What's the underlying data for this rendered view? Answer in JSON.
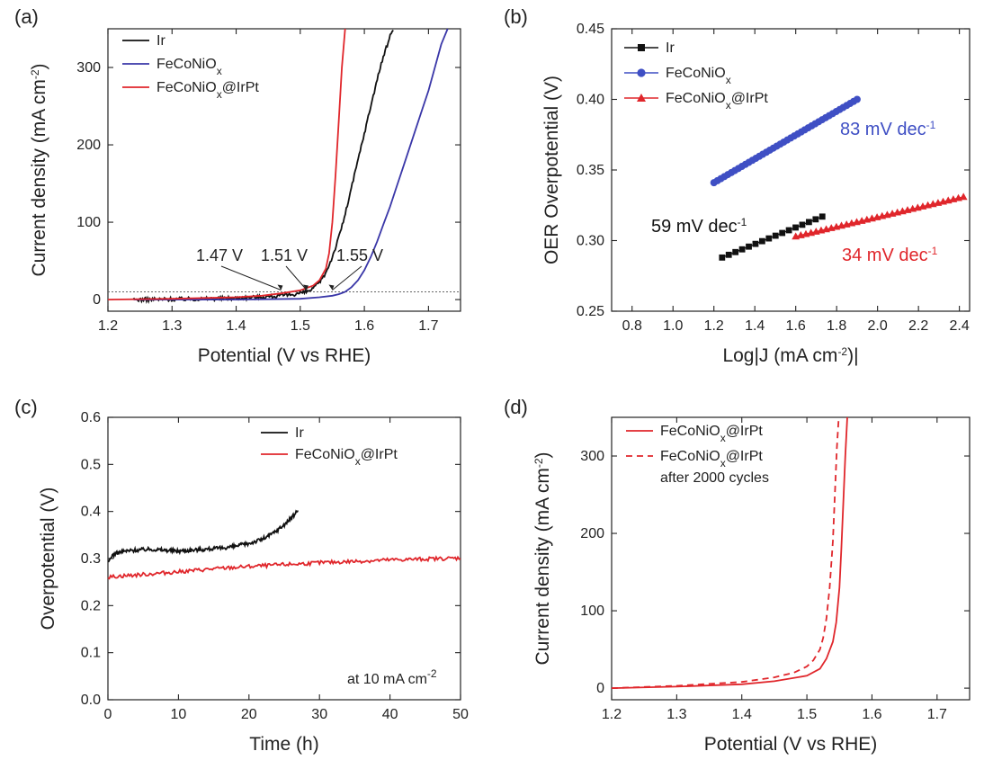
{
  "chart_data": [
    {
      "panel": "(a)",
      "type": "line",
      "xlabel": "Potential (V vs RHE)",
      "ylabel": "Current density (mA cm-2)",
      "ylabel_parts": [
        "Current density (mA cm",
        "-2",
        ")"
      ],
      "xlim": [
        1.2,
        1.75
      ],
      "ylim": [
        -15,
        350
      ],
      "xticks": [
        1.2,
        1.3,
        1.4,
        1.5,
        1.6,
        1.7
      ],
      "yticks": [
        0,
        100,
        200,
        300
      ],
      "legend_entries": [
        {
          "parts": [
            "Ir"
          ],
          "color": "#111111"
        },
        {
          "parts": [
            "FeCoNiO",
            "x"
          ],
          "color": "#3a37a8"
        },
        {
          "parts": [
            "FeCoNiO",
            "x",
            "@IrPt"
          ],
          "color": "#e0262b"
        }
      ],
      "reference_line": {
        "y": 10,
        "style": "dotted"
      },
      "annotations": [
        {
          "text": "1.47 V",
          "x": 1.47,
          "y": 10
        },
        {
          "text": "1.51 V",
          "x": 1.51,
          "y": 10
        },
        {
          "text": "1.55 V",
          "x": 1.55,
          "y": 10
        }
      ],
      "series": [
        {
          "name": "Ir",
          "color": "#111111",
          "noisy": true,
          "x": [
            1.24,
            1.3,
            1.35,
            1.4,
            1.44,
            1.47,
            1.49,
            1.51,
            1.52,
            1.53,
            1.54,
            1.55,
            1.56,
            1.57,
            1.58,
            1.59,
            1.6,
            1.61,
            1.62,
            1.63,
            1.64,
            1.645
          ],
          "y": [
            0,
            0.5,
            1,
            2,
            3.5,
            5,
            7,
            10,
            14,
            22,
            35,
            55,
            80,
            110,
            145,
            180,
            215,
            250,
            285,
            315,
            340,
            350
          ]
        },
        {
          "name": "FeCoNiOx",
          "color": "#3a37a8",
          "x": [
            1.24,
            1.3,
            1.4,
            1.5,
            1.53,
            1.55,
            1.56,
            1.57,
            1.58,
            1.59,
            1.6,
            1.61,
            1.62,
            1.63,
            1.64,
            1.65,
            1.66,
            1.67,
            1.68,
            1.69,
            1.7,
            1.71,
            1.72,
            1.73
          ],
          "y": [
            0,
            0,
            0,
            1,
            3,
            5,
            7,
            10,
            16,
            25,
            38,
            55,
            75,
            98,
            120,
            145,
            170,
            195,
            220,
            245,
            270,
            300,
            330,
            350
          ]
        },
        {
          "name": "FeCoNiOx@IrPt",
          "color": "#e0262b",
          "x": [
            1.2,
            1.3,
            1.4,
            1.44,
            1.47,
            1.5,
            1.52,
            1.53,
            1.54,
            1.545,
            1.55,
            1.555,
            1.56,
            1.565,
            1.57
          ],
          "y": [
            0,
            1,
            3,
            5,
            8,
            12,
            18,
            25,
            40,
            60,
            100,
            160,
            230,
            300,
            350
          ]
        }
      ]
    },
    {
      "panel": "(b)",
      "type": "scatter",
      "xlabel_parts": [
        "Log|J (mA cm",
        "-2",
        ")|"
      ],
      "ylabel": "OER Overpotential (V)",
      "xlim": [
        0.7,
        2.45
      ],
      "ylim": [
        0.25,
        0.45
      ],
      "xticks": [
        0.8,
        1.0,
        1.2,
        1.4,
        1.6,
        1.8,
        2.0,
        2.2,
        2.4
      ],
      "yticks": [
        0.25,
        0.3,
        0.35,
        0.4,
        0.45
      ],
      "legend_entries": [
        {
          "parts": [
            "Ir"
          ],
          "color": "#111111",
          "marker": "square"
        },
        {
          "parts": [
            "FeCoNiO",
            "x"
          ],
          "color": "#3f4fc4",
          "marker": "circle"
        },
        {
          "parts": [
            "FeCoNiO",
            "x",
            "@IrPt"
          ],
          "color": "#e0262b",
          "marker": "triangle"
        }
      ],
      "annotations": [
        {
          "parts": [
            "83 mV dec",
            "-1"
          ],
          "color": "#3f4fc4"
        },
        {
          "parts": [
            "59 mV dec",
            "-1"
          ],
          "color": "#111111"
        },
        {
          "parts": [
            "34 mV dec",
            "-1"
          ],
          "color": "#e0262b"
        }
      ],
      "series": [
        {
          "name": "Ir",
          "color": "#111111",
          "marker": "square",
          "x_start": 1.24,
          "x_end": 1.73,
          "y_start": 0.288,
          "y_end": 0.317,
          "n": 16
        },
        {
          "name": "FeCoNiOx",
          "color": "#3f4fc4",
          "marker": "circle",
          "x_start": 1.2,
          "x_end": 1.9,
          "y_start": 0.341,
          "y_end": 0.4,
          "n": 42
        },
        {
          "name": "FeCoNiOx@IrPt",
          "color": "#e0262b",
          "marker": "triangle",
          "x_start": 1.6,
          "x_end": 2.42,
          "y_start": 0.303,
          "y_end": 0.331,
          "n": 34
        }
      ]
    },
    {
      "panel": "(c)",
      "type": "line",
      "xlabel": "Time (h)",
      "ylabel": "Overpotential (V)",
      "xlim": [
        0,
        50
      ],
      "ylim": [
        0,
        0.6
      ],
      "xticks": [
        0,
        10,
        20,
        30,
        40,
        50
      ],
      "yticks": [
        0.0,
        0.1,
        0.2,
        0.3,
        0.4,
        0.5,
        0.6
      ],
      "legend_entries": [
        {
          "parts": [
            "Ir"
          ],
          "color": "#111111"
        },
        {
          "parts": [
            "FeCoNiO",
            "x",
            "@IrPt"
          ],
          "color": "#e0262b"
        }
      ],
      "annotations": [
        {
          "parts": [
            "at 10 mA cm",
            "-2"
          ]
        }
      ],
      "series": [
        {
          "name": "Ir",
          "color": "#111111",
          "noisy": true,
          "x": [
            0,
            0.5,
            1,
            2,
            4,
            6,
            8,
            10,
            12,
            14,
            16,
            18,
            20,
            22,
            23,
            24,
            25,
            26,
            27
          ],
          "y": [
            0.29,
            0.305,
            0.31,
            0.315,
            0.318,
            0.32,
            0.318,
            0.316,
            0.318,
            0.32,
            0.322,
            0.326,
            0.332,
            0.342,
            0.35,
            0.36,
            0.372,
            0.386,
            0.403
          ]
        },
        {
          "name": "FeCoNiOx@IrPt",
          "color": "#e0262b",
          "noisy": true,
          "x": [
            0,
            1,
            5,
            10,
            15,
            20,
            25,
            30,
            35,
            40,
            45,
            50
          ],
          "y": [
            0.26,
            0.262,
            0.266,
            0.272,
            0.278,
            0.283,
            0.287,
            0.291,
            0.294,
            0.297,
            0.299,
            0.301
          ]
        }
      ]
    },
    {
      "panel": "(d)",
      "type": "line",
      "xlabel": "Potential (V vs RHE)",
      "ylabel": "Current density (mA cm-2)",
      "ylabel_parts": [
        "Current density (mA cm",
        "-2",
        ")"
      ],
      "xlim": [
        1.2,
        1.75
      ],
      "ylim": [
        -15,
        350
      ],
      "xticks": [
        1.2,
        1.3,
        1.4,
        1.5,
        1.6,
        1.7
      ],
      "yticks": [
        0,
        100,
        200,
        300
      ],
      "legend_entries": [
        {
          "parts": [
            "FeCoNiO",
            "x",
            "@IrPt"
          ],
          "color": "#e0262b",
          "dash": false
        },
        {
          "parts": [
            "FeCoNiO",
            "x",
            "@IrPt"
          ],
          "color": "#e0262b",
          "dash": true,
          "line2": "after 2000 cycles"
        }
      ],
      "series": [
        {
          "name": "FeCoNiOx@IrPt",
          "color": "#e0262b",
          "dash": false,
          "x": [
            1.2,
            1.3,
            1.4,
            1.45,
            1.5,
            1.52,
            1.53,
            1.54,
            1.545,
            1.55,
            1.553,
            1.556,
            1.559,
            1.562
          ],
          "y": [
            0,
            2,
            5,
            9,
            16,
            25,
            38,
            60,
            85,
            130,
            180,
            240,
            300,
            350
          ]
        },
        {
          "name": "FeCoNiOx@IrPt after 2000 cycles",
          "color": "#e0262b",
          "dash": true,
          "x": [
            1.2,
            1.3,
            1.4,
            1.45,
            1.48,
            1.5,
            1.51,
            1.52,
            1.525,
            1.53,
            1.535,
            1.54,
            1.543,
            1.546,
            1.549
          ],
          "y": [
            0,
            3,
            8,
            14,
            20,
            28,
            36,
            50,
            65,
            90,
            130,
            190,
            250,
            310,
            350
          ]
        }
      ]
    }
  ]
}
